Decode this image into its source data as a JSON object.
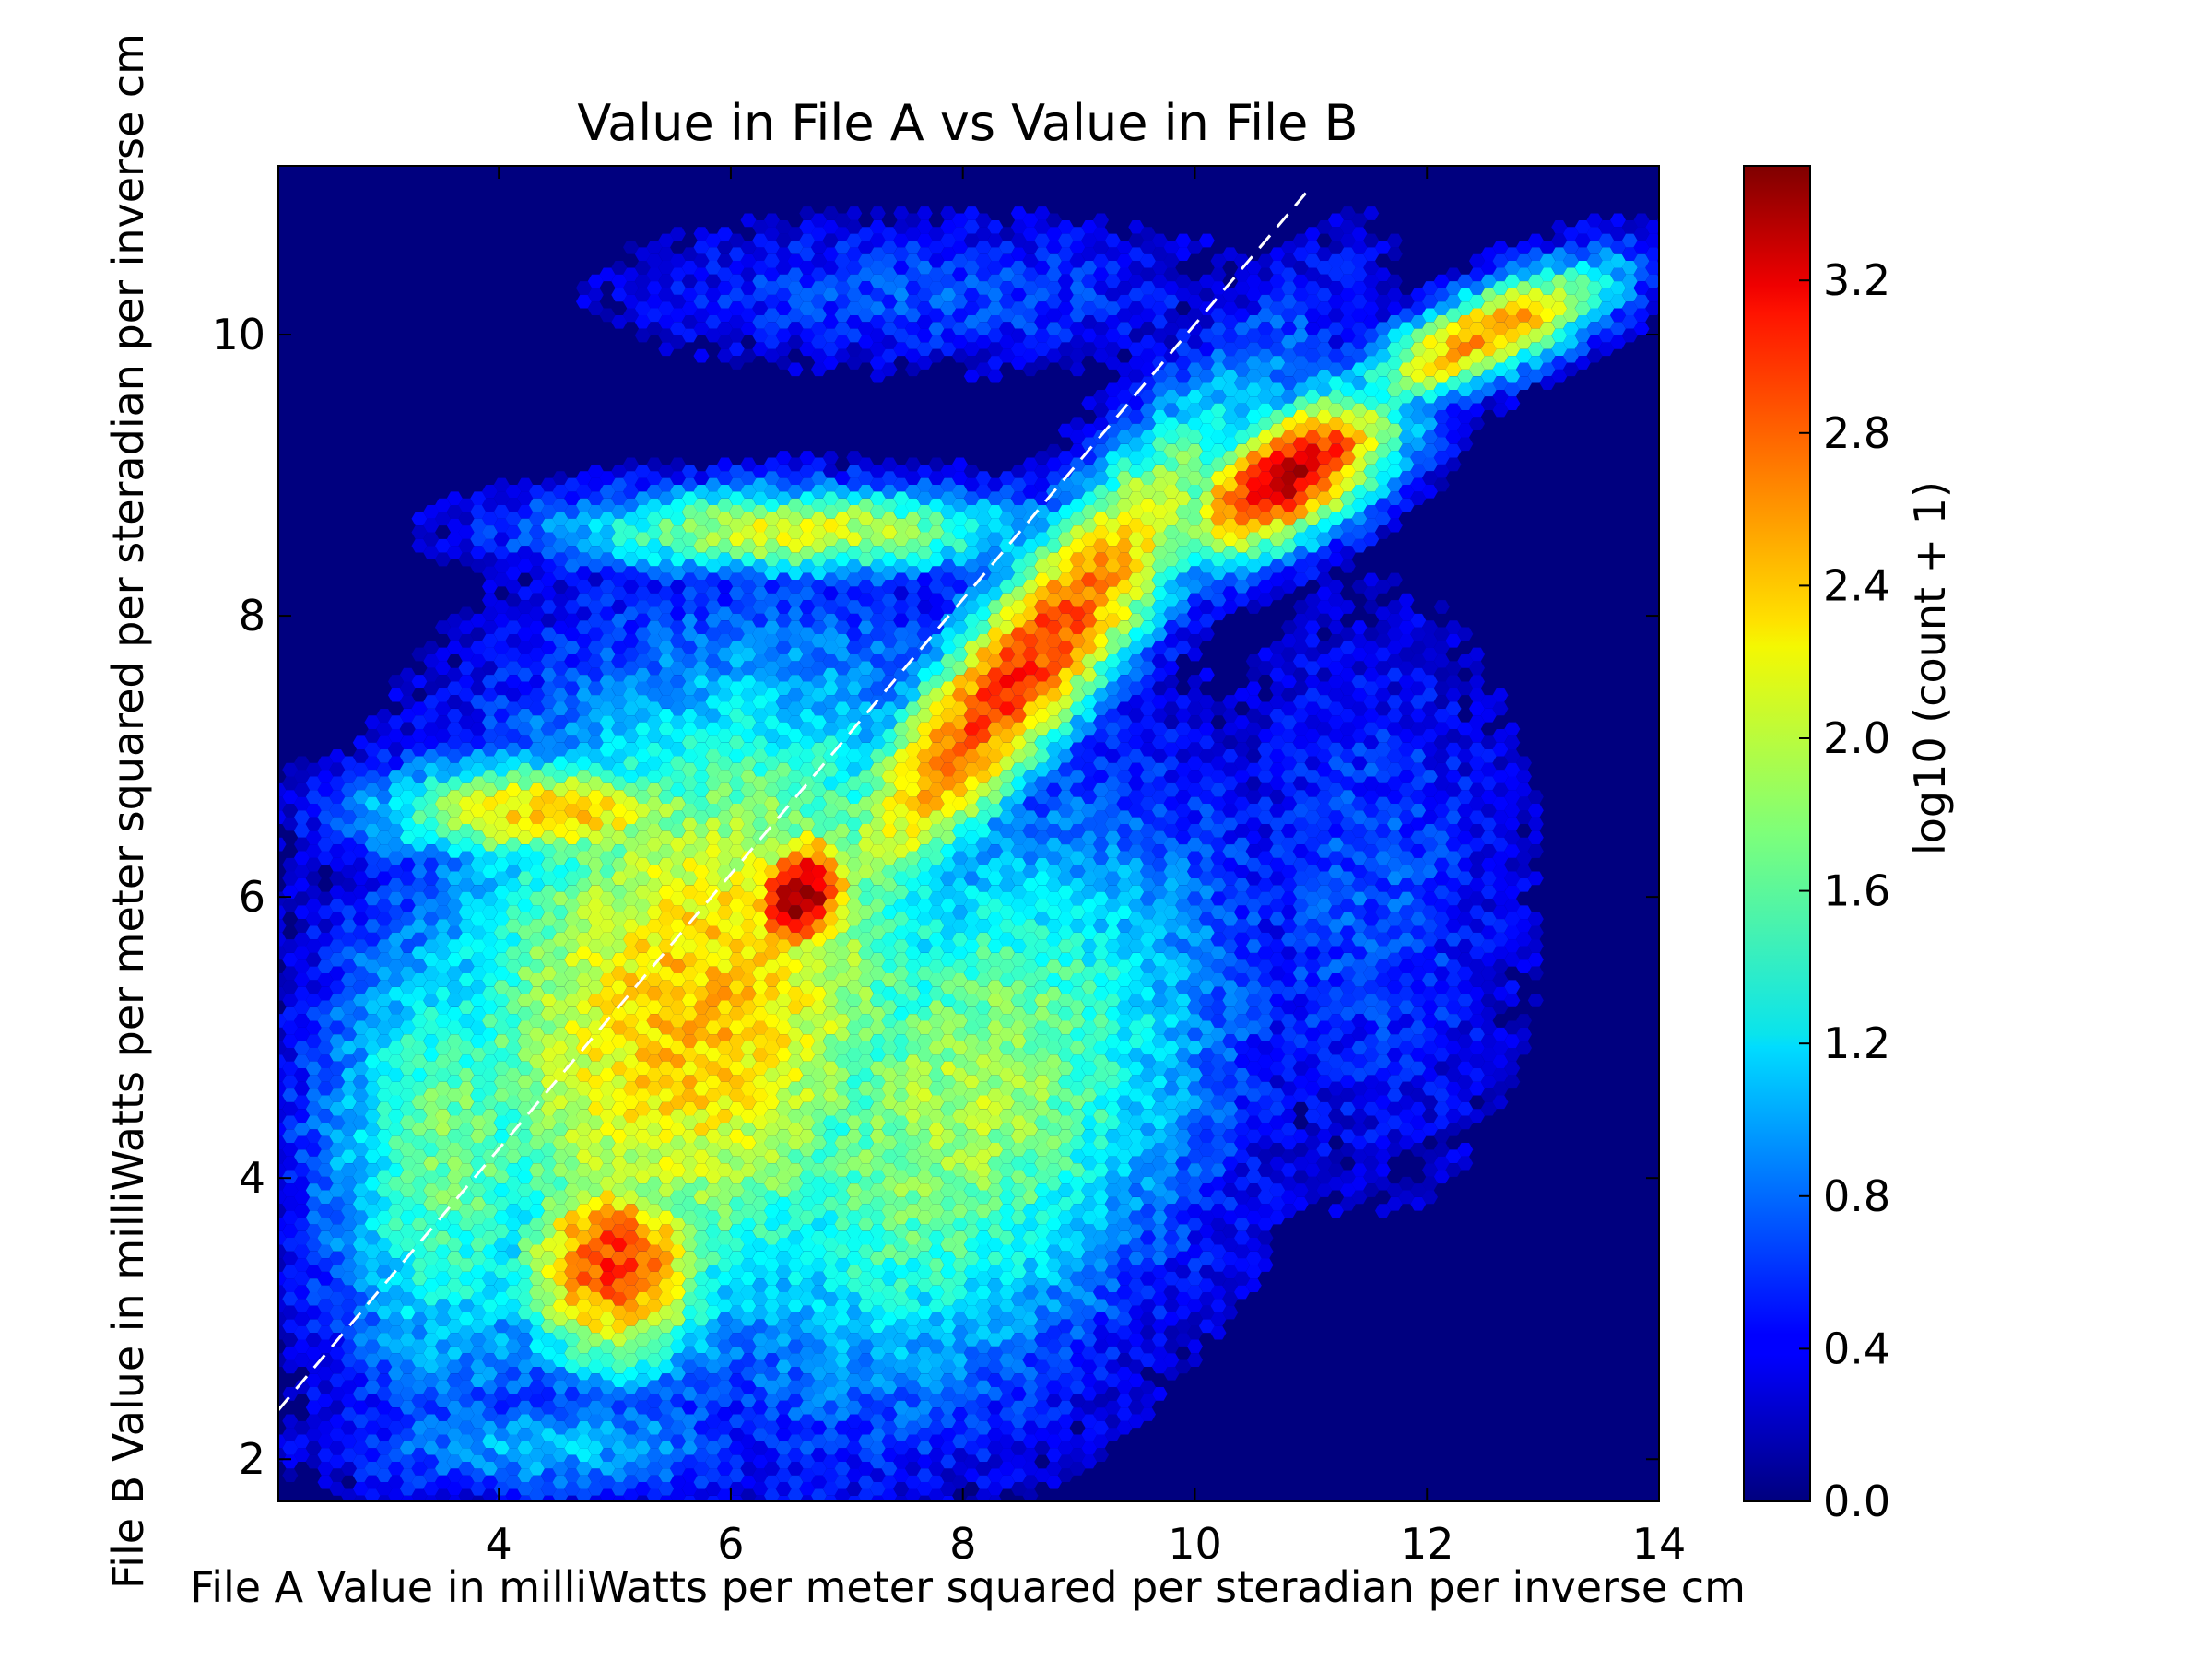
{
  "chart_data": {
    "type": "heatmap",
    "subtype": "hexbin",
    "title": "Value in File A vs Value in File B",
    "xlabel": "File A Value in milliWatts per meter squared per steradian per inverse cm",
    "ylabel": "File B Value in milliWatts per meter squared per steradian per inverse cm",
    "xlim": [
      2.1,
      14.0
    ],
    "ylim": [
      1.7,
      11.2
    ],
    "xticks": [
      4,
      6,
      8,
      10,
      12,
      14
    ],
    "yticks": [
      2,
      4,
      6,
      8,
      10
    ],
    "grid": false,
    "colormap": "jet",
    "background_color": "#00007f",
    "colorbar": {
      "label": "log10 (count + 1)",
      "min": 0.0,
      "max": 3.5,
      "ticks": [
        "0.0",
        "0.4",
        "0.8",
        "1.2",
        "1.6",
        "2.0",
        "2.4",
        "2.8",
        "3.2"
      ]
    },
    "reference_line": {
      "style": "dashed",
      "color": "#ffffff",
      "x": [
        2.1,
        11.0
      ],
      "y": [
        2.35,
        11.05
      ]
    },
    "density_model": {
      "components": [
        {
          "x": 6.6,
          "y": 6.0,
          "sx": 0.45,
          "sy": 0.35,
          "angle_deg": 45,
          "peak": 3.5
        },
        {
          "x": 10.8,
          "y": 9.0,
          "sx": 0.8,
          "sy": 0.35,
          "angle_deg": 25,
          "peak": 3.3
        },
        {
          "x": 8.5,
          "y": 7.6,
          "sx": 2.0,
          "sy": 0.45,
          "angle_deg": 45,
          "peak": 2.9
        },
        {
          "x": 5.0,
          "y": 3.4,
          "sx": 0.7,
          "sy": 0.6,
          "angle_deg": 0,
          "peak": 2.9
        },
        {
          "x": 12.5,
          "y": 10.0,
          "sx": 0.9,
          "sy": 0.25,
          "angle_deg": 20,
          "peak": 2.6
        },
        {
          "x": 5.7,
          "y": 5.2,
          "sx": 2.0,
          "sy": 1.6,
          "angle_deg": 45,
          "peak": 2.4
        },
        {
          "x": 4.5,
          "y": 6.6,
          "sx": 1.2,
          "sy": 0.3,
          "angle_deg": 0,
          "peak": 2.4
        },
        {
          "x": 6.6,
          "y": 8.6,
          "sx": 1.6,
          "sy": 0.25,
          "angle_deg": 0,
          "peak": 2.1
        },
        {
          "x": 8.0,
          "y": 4.5,
          "sx": 1.9,
          "sy": 1.3,
          "angle_deg": 40,
          "peak": 1.9
        },
        {
          "x": 3.6,
          "y": 4.2,
          "sx": 0.9,
          "sy": 1.4,
          "angle_deg": 0,
          "peak": 1.7
        },
        {
          "x": 11.5,
          "y": 6.0,
          "sx": 1.0,
          "sy": 1.5,
          "angle_deg": 0,
          "peak": 0.7
        },
        {
          "x": 7.7,
          "y": 10.3,
          "sx": 2.0,
          "sy": 0.4,
          "angle_deg": 0,
          "peak": 0.7
        },
        {
          "x": 4.5,
          "y": 2.1,
          "sx": 1.4,
          "sy": 0.3,
          "angle_deg": 0,
          "peak": 1.1
        }
      ]
    }
  }
}
